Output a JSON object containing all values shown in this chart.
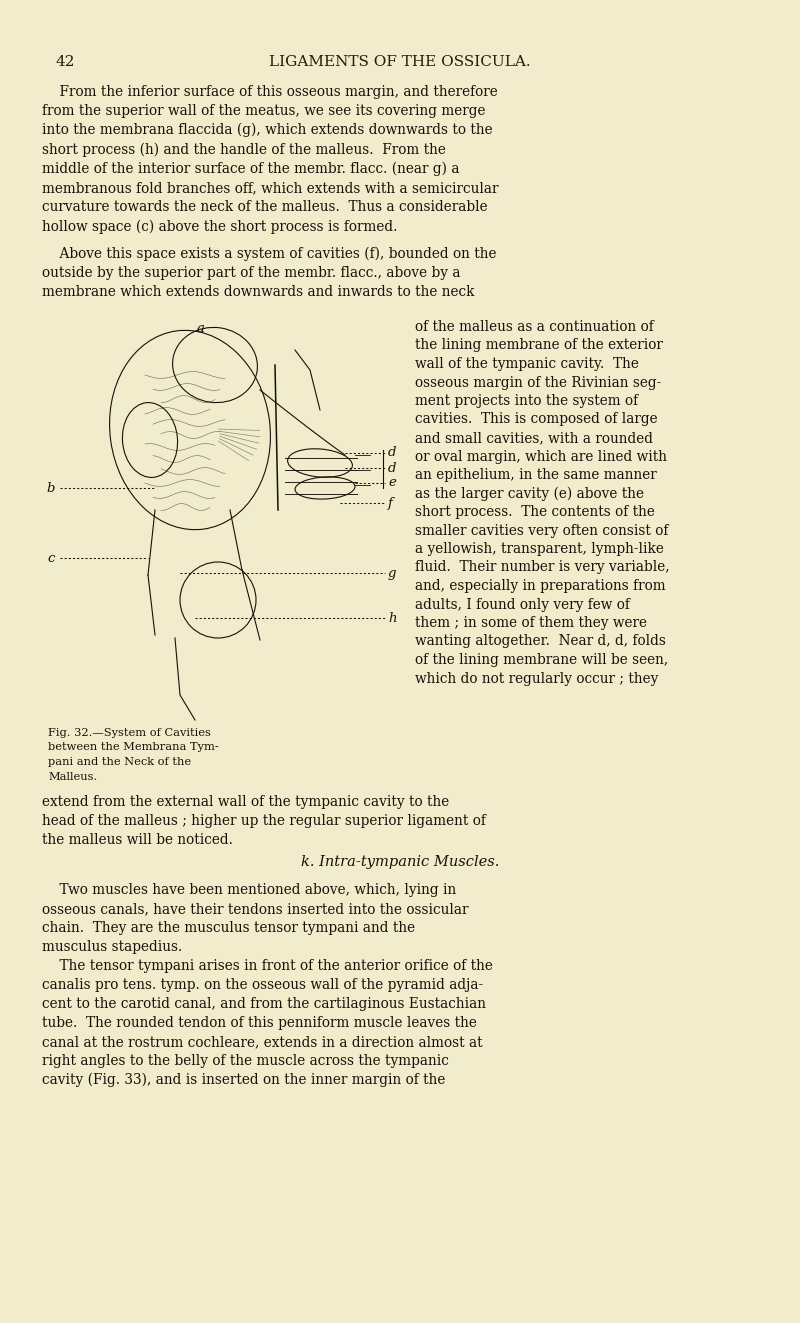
{
  "bg_color": "#f0eccc",
  "page_number": "42",
  "header_title": "LIGAMENTS OF THE OSSICULA.",
  "text_color": "#1a1008",
  "header_color": "#2a1a08",
  "para1": "    From the inferior surface of this osseous margin, and therefore\nfrom the superior wall of the meatus, we see its covering merge\ninto the membrana flaccida (g), which extends downwards to the\nshort process (h) and the handle of the malleus.  From the\nmiddle of the interior surface of the membr. flacc. (near g) a\nmembranous fold branches off, which extends with a semicircular\ncurvature towards the neck of the malleus.  Thus a considerable\nhollow space (c) above the short process is formed.",
  "para2_left": "    Above this space exists a system of cavities (f), bounded on the\noutside by the superior part of the membr. flacc., above by a\nmembrane which extends downwards and inwards to the neck",
  "right_col_lines": [
    "of the malleus as a continuation of",
    "the lining membrane of the exterior",
    "wall of the tympanic cavity.  The",
    "osseous margin of the Rivinian seg-",
    "ment projects into the system of",
    "cavities.  This is composed of large",
    "and small cavities, with a rounded",
    "or oval margin, which are lined with",
    "an epithelium, in the same manner",
    "as the larger cavity (e) above the",
    "short process.  The contents of the",
    "smaller cavities very often consist of",
    "a yellowish, transparent, lymph-like",
    "fluid.  Their number is very variable,",
    "and, especially in preparations from",
    "adults, I found only very few of",
    "them ; in some of them they were",
    "wanting altogether.  Near d, d, folds",
    "of the lining membrane will be seen,",
    "which do not regularly occur ; they"
  ],
  "fig_caption_lines": [
    "Fig. 32.—System of Cavities",
    "between the Membrana Tym-",
    "pani and the Neck of the",
    "Malleus."
  ],
  "para_bottom1": "extend from the external wall of the tympanic cavity to the\nhead of the malleus ; higher up the regular superior ligament of\nthe malleus will be noticed.",
  "section_header": "k. Intra-tympanic Muscles.",
  "para_muscles": "    Two muscles have been mentioned above, which, lying in\nosseous canals, have their tendons inserted into the ossicular\nchain.  They are the musculus tensor tympani and the\nmusculus stapedius.",
  "para_tensor": "    The tensor tympani arises in front of the anterior orifice of the\ncanalis pro tens. tymp. on the osseous wall of the pyramid adja-\ncent to the carotid canal, and from the cartilaginous Eustachian\ntube.  The rounded tendon of this penniform muscle leaves the\ncanal at the rostrum cochleare, extends in a direction almost at\nright angles to the belly of the muscle across the tympanic\ncavity (Fig. 33), and is inserted on the inner margin of the"
}
